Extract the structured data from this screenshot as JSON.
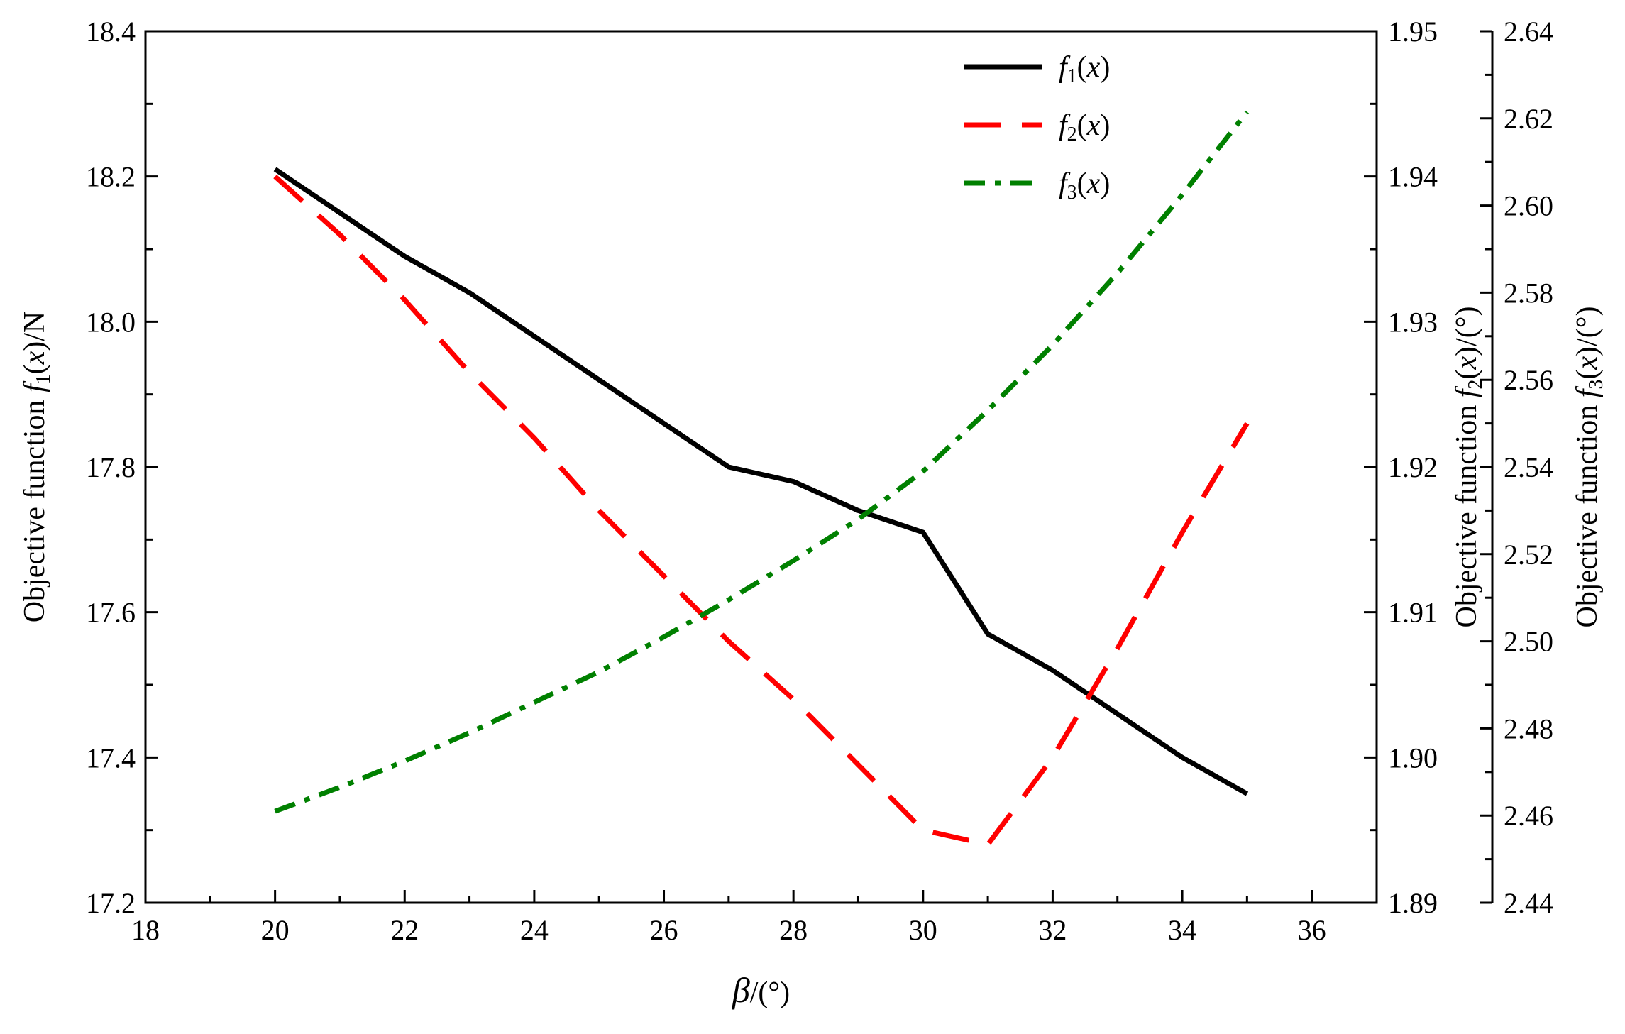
{
  "chart_data": {
    "type": "line",
    "xlabel": {
      "main": "β",
      "unit": "/(°)"
    },
    "xlim": [
      18,
      37
    ],
    "xticks": [
      18,
      20,
      22,
      24,
      26,
      28,
      30,
      32,
      34,
      36
    ],
    "axes": [
      {
        "id": "y1",
        "side": "left",
        "label": {
          "prefix": "Objective function ",
          "f": "f",
          "sub": "1",
          "arg": "(x)",
          "unit": "/N"
        },
        "ylim": [
          17.2,
          18.4
        ],
        "ticks": [
          17.2,
          17.4,
          17.6,
          17.8,
          18.0,
          18.2,
          18.4
        ],
        "tick_labels": [
          "17.2",
          "17.4",
          "17.6",
          "17.8",
          "18.0",
          "18.2",
          "18.4"
        ]
      },
      {
        "id": "y2",
        "side": "right",
        "label": {
          "prefix": "Objective function ",
          "f": "f",
          "sub": "2",
          "arg": "(x)",
          "unit": "/(°)"
        },
        "ylim": [
          1.89,
          1.95
        ],
        "ticks": [
          1.89,
          1.9,
          1.91,
          1.92,
          1.93,
          1.94,
          1.95
        ],
        "tick_labels": [
          "1.89",
          "1.90",
          "1.91",
          "1.92",
          "1.93",
          "1.94",
          "1.95"
        ]
      },
      {
        "id": "y3",
        "side": "right-offset",
        "label": {
          "prefix": "Objective function ",
          "f": "f",
          "sub": "3",
          "arg": "(x)",
          "unit": "/(°)"
        },
        "ylim": [
          2.44,
          2.64
        ],
        "ticks": [
          2.44,
          2.46,
          2.48,
          2.5,
          2.52,
          2.54,
          2.56,
          2.58,
          2.6,
          2.62,
          2.64
        ],
        "tick_labels": [
          "2.44",
          "2.46",
          "2.48",
          "2.50",
          "2.52",
          "2.54",
          "2.56",
          "2.58",
          "2.60",
          "2.62",
          "2.64"
        ]
      }
    ],
    "series": [
      {
        "name": "f1(x)",
        "legend": {
          "f": "f",
          "sub": "1",
          "arg": "(x)"
        },
        "axis": "y1",
        "color": "#000000",
        "style": "solid",
        "x": [
          20,
          21,
          22,
          23,
          24,
          25,
          26,
          27,
          28,
          29,
          30,
          31,
          32,
          33,
          34,
          35
        ],
        "y": [
          18.21,
          18.15,
          18.09,
          18.04,
          17.98,
          17.92,
          17.86,
          17.8,
          17.78,
          17.74,
          17.71,
          17.57,
          17.52,
          17.46,
          17.4,
          17.35
        ]
      },
      {
        "name": "f2(x)",
        "legend": {
          "f": "f",
          "sub": "2",
          "arg": "(x)"
        },
        "axis": "y2",
        "color": "#ff0000",
        "style": "dashed",
        "x": [
          20,
          21,
          22,
          23,
          24,
          25,
          26,
          27,
          28,
          29,
          30,
          31,
          32,
          33,
          34,
          35
        ],
        "y": [
          1.94,
          1.936,
          1.9315,
          1.9265,
          1.922,
          1.917,
          1.9125,
          1.908,
          1.904,
          1.8995,
          1.895,
          1.894,
          1.9,
          1.9075,
          1.9155,
          1.923
        ]
      },
      {
        "name": "f3(x)",
        "legend": {
          "f": "f",
          "sub": "3",
          "arg": "(x)"
        },
        "axis": "y3",
        "color": "#008000",
        "style": "dashdot",
        "x": [
          20,
          21,
          22,
          23,
          24,
          25,
          26,
          27,
          28,
          29,
          30,
          31,
          32,
          33,
          34,
          35
        ],
        "y": [
          2.461,
          2.4665,
          2.4725,
          2.479,
          2.486,
          2.493,
          2.501,
          2.5095,
          2.5185,
          2.528,
          2.539,
          2.553,
          2.568,
          2.5845,
          2.6025,
          2.6215
        ]
      }
    ],
    "legend_position": "top-right",
    "grid": false
  }
}
